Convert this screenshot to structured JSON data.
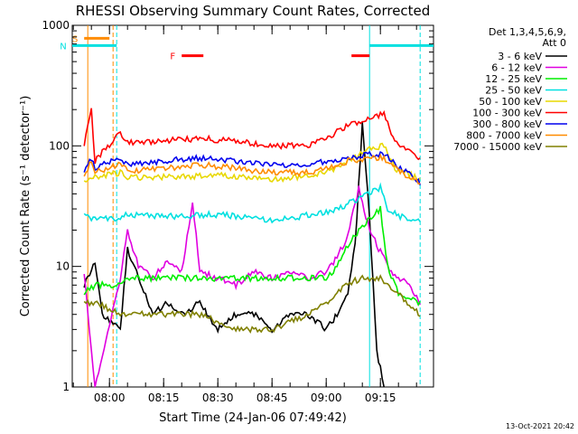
{
  "chart_data": {
    "type": "line",
    "title": "RHESSI Observing Summary Count Rates, Corrected",
    "xlabel": "Start Time (24-Jan-06 07:49:42)",
    "ylabel": "Corrected Count Rate (s⁻¹ detector⁻¹)",
    "yscale": "log",
    "ylim": [
      1,
      1000
    ],
    "xlim": [
      "07:49:42",
      "09:29:42"
    ],
    "x_ticks": [
      "08:00",
      "08:15",
      "08:30",
      "08:45",
      "09:00",
      "09:15"
    ],
    "y_ticks": [
      "1",
      "10",
      "100",
      "1000"
    ],
    "grid": false,
    "legend_position": "right",
    "legend_header": [
      "Det 1,3,4,5,6,9,",
      "Att 0"
    ],
    "footer_date": "13-Oct-2021 20:42",
    "series": [
      {
        "name": "3 - 6 keV",
        "color": "#000000",
        "points": [
          [
            "07:53",
            7
          ],
          [
            "07:56",
            11
          ],
          [
            "07:58",
            4
          ],
          [
            "08:03",
            3
          ],
          [
            "08:05",
            14
          ],
          [
            "08:08",
            8
          ],
          [
            "08:12",
            4
          ],
          [
            "08:16",
            5
          ],
          [
            "08:20",
            4
          ],
          [
            "08:25",
            5
          ],
          [
            "08:30",
            3
          ],
          [
            "08:35",
            4
          ],
          [
            "08:40",
            4
          ],
          [
            "08:45",
            3
          ],
          [
            "08:50",
            4
          ],
          [
            "08:55",
            4
          ],
          [
            "09:00",
            3
          ],
          [
            "09:03",
            4
          ],
          [
            "09:06",
            6
          ],
          [
            "09:08",
            15
          ],
          [
            "09:10",
            150
          ],
          [
            "09:12",
            25
          ],
          [
            "09:14",
            2
          ],
          [
            "09:16",
            1
          ]
        ]
      },
      {
        "name": "6 - 12 keV",
        "color": "#e000e0",
        "points": [
          [
            "07:53",
            9
          ],
          [
            "07:55",
            2
          ],
          [
            "07:56",
            1
          ],
          [
            "08:03",
            8
          ],
          [
            "08:05",
            20
          ],
          [
            "08:08",
            10
          ],
          [
            "08:12",
            8
          ],
          [
            "08:16",
            11
          ],
          [
            "08:20",
            9
          ],
          [
            "08:23",
            35
          ],
          [
            "08:25",
            9
          ],
          [
            "08:30",
            8
          ],
          [
            "08:35",
            7
          ],
          [
            "08:40",
            9
          ],
          [
            "08:45",
            8
          ],
          [
            "08:50",
            9
          ],
          [
            "08:55",
            8
          ],
          [
            "09:00",
            9
          ],
          [
            "09:03",
            12
          ],
          [
            "09:06",
            18
          ],
          [
            "09:09",
            45
          ],
          [
            "09:11",
            25
          ],
          [
            "09:14",
            15
          ],
          [
            "09:18",
            9
          ],
          [
            "09:23",
            7
          ],
          [
            "09:26",
            5
          ]
        ]
      },
      {
        "name": "12 - 25 keV",
        "color": "#00ee00",
        "points": [
          [
            "07:53",
            6
          ],
          [
            "07:56",
            7
          ],
          [
            "08:03",
            7
          ],
          [
            "08:05",
            8
          ],
          [
            "08:15",
            8
          ],
          [
            "08:30",
            8
          ],
          [
            "08:45",
            8
          ],
          [
            "09:00",
            8
          ],
          [
            "09:03",
            10
          ],
          [
            "09:06",
            15
          ],
          [
            "09:09",
            20
          ],
          [
            "09:12",
            25
          ],
          [
            "09:15",
            30
          ],
          [
            "09:17",
            10
          ],
          [
            "09:20",
            6
          ],
          [
            "09:26",
            5
          ]
        ]
      },
      {
        "name": "25 - 50 keV",
        "color": "#00e0e0",
        "points": [
          [
            "07:53",
            28
          ],
          [
            "07:55",
            25
          ],
          [
            "08:03",
            25
          ],
          [
            "08:05",
            27
          ],
          [
            "08:15",
            26
          ],
          [
            "08:30",
            27
          ],
          [
            "08:45",
            24
          ],
          [
            "09:00",
            28
          ],
          [
            "09:05",
            32
          ],
          [
            "09:10",
            38
          ],
          [
            "09:15",
            45
          ],
          [
            "09:17",
            30
          ],
          [
            "09:20",
            26
          ],
          [
            "09:26",
            24
          ]
        ]
      },
      {
        "name": "50 - 100 keV",
        "color": "#e8d800",
        "points": [
          [
            "07:53",
            52
          ],
          [
            "07:56",
            55
          ],
          [
            "08:03",
            60
          ],
          [
            "08:05",
            55
          ],
          [
            "08:15",
            55
          ],
          [
            "08:30",
            57
          ],
          [
            "08:45",
            52
          ],
          [
            "09:00",
            60
          ],
          [
            "09:08",
            80
          ],
          [
            "09:12",
            95
          ],
          [
            "09:16",
            100
          ],
          [
            "09:19",
            65
          ],
          [
            "09:23",
            58
          ],
          [
            "09:26",
            52
          ]
        ]
      },
      {
        "name": "100 - 300 keV",
        "color": "#ff0000",
        "points": [
          [
            "07:53",
            100
          ],
          [
            "07:55",
            200
          ],
          [
            "07:56",
            75
          ],
          [
            "08:03",
            130
          ],
          [
            "08:05",
            105
          ],
          [
            "08:15",
            110
          ],
          [
            "08:25",
            115
          ],
          [
            "08:35",
            110
          ],
          [
            "08:45",
            100
          ],
          [
            "08:55",
            100
          ],
          [
            "09:00",
            115
          ],
          [
            "09:06",
            150
          ],
          [
            "09:12",
            170
          ],
          [
            "09:16",
            185
          ],
          [
            "09:19",
            110
          ],
          [
            "09:23",
            90
          ],
          [
            "09:26",
            80
          ]
        ]
      },
      {
        "name": "300 - 800 keV",
        "color": "#0000ee",
        "points": [
          [
            "07:53",
            60
          ],
          [
            "07:55",
            80
          ],
          [
            "07:56",
            65
          ],
          [
            "08:03",
            80
          ],
          [
            "08:05",
            70
          ],
          [
            "08:15",
            75
          ],
          [
            "08:25",
            80
          ],
          [
            "08:35",
            75
          ],
          [
            "08:45",
            70
          ],
          [
            "08:55",
            70
          ],
          [
            "09:00",
            75
          ],
          [
            "09:06",
            80
          ],
          [
            "09:12",
            85
          ],
          [
            "09:16",
            85
          ],
          [
            "09:19",
            70
          ],
          [
            "09:23",
            60
          ],
          [
            "09:26",
            50
          ]
        ]
      },
      {
        "name": "800 - 7000 keV",
        "color": "#ff8c00",
        "points": [
          [
            "07:53",
            55
          ],
          [
            "07:55",
            75
          ],
          [
            "07:56",
            60
          ],
          [
            "08:03",
            70
          ],
          [
            "08:05",
            62
          ],
          [
            "08:15",
            65
          ],
          [
            "08:25",
            70
          ],
          [
            "08:35",
            65
          ],
          [
            "08:45",
            60
          ],
          [
            "08:55",
            60
          ],
          [
            "09:00",
            65
          ],
          [
            "09:06",
            75
          ],
          [
            "09:12",
            80
          ],
          [
            "09:16",
            80
          ],
          [
            "09:19",
            65
          ],
          [
            "09:23",
            55
          ],
          [
            "09:26",
            48
          ]
        ]
      },
      {
        "name": "7000 - 15000 keV",
        "color": "#808000",
        "points": [
          [
            "07:53",
            5
          ],
          [
            "07:56",
            5
          ],
          [
            "08:03",
            4
          ],
          [
            "08:05",
            4
          ],
          [
            "08:15",
            4
          ],
          [
            "08:25",
            4
          ],
          [
            "08:35",
            3
          ],
          [
            "08:45",
            3
          ],
          [
            "08:55",
            4
          ],
          [
            "09:00",
            5
          ],
          [
            "09:05",
            7
          ],
          [
            "09:10",
            8
          ],
          [
            "09:15",
            8
          ],
          [
            "09:20",
            6
          ],
          [
            "09:26",
            4
          ]
        ]
      }
    ],
    "annotations": [
      {
        "text": "S",
        "color": "#ff8c00",
        "x_start": "07:53",
        "x_end": "08:00",
        "y": 780
      },
      {
        "text": "N",
        "color": "#00e0e0",
        "x_start": "07:49:42",
        "x_end": "08:02",
        "y": 680
      },
      {
        "text": "F",
        "color": "#ff0000",
        "x_start": "08:20",
        "x_end": "08:26",
        "y": 560
      },
      {
        "text": "",
        "color": "#ff0000",
        "x_start": "09:07",
        "x_end": "09:12",
        "y": 560
      },
      {
        "text": "",
        "color": "#00e0e0",
        "x_start": "09:12",
        "x_end": "09:29:42",
        "y": 680
      }
    ],
    "vertical_lines": [
      {
        "x": "07:54",
        "color": "#ff8c00",
        "style": "solid"
      },
      {
        "x": "08:01",
        "color": "#ff8c00",
        "style": "dashed"
      },
      {
        "x": "08:02",
        "color": "#00e0e0",
        "style": "dashed"
      },
      {
        "x": "09:12",
        "color": "#00e0e0",
        "style": "solid"
      },
      {
        "x": "09:26",
        "color": "#00e0e0",
        "style": "dashed"
      }
    ]
  }
}
